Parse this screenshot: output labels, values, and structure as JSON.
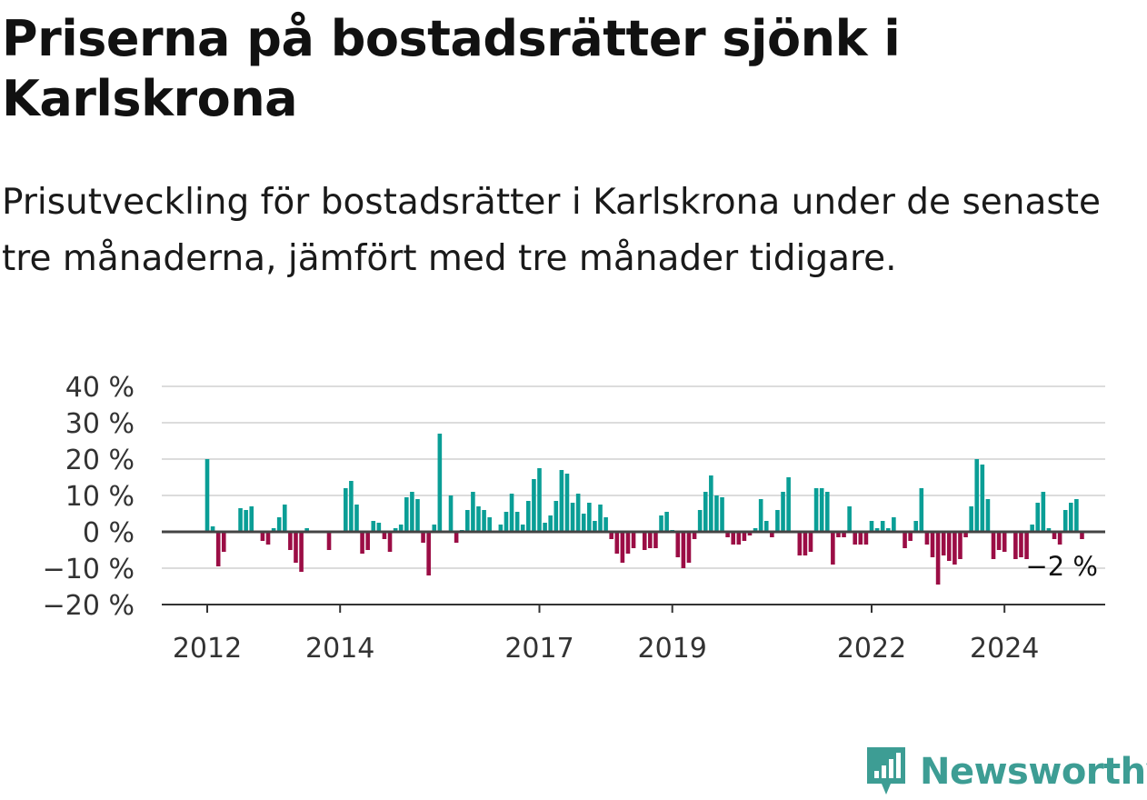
{
  "title": "Priserna på bostadsrätter sjönk i Karlskrona",
  "subtitle": "Prisutveckling för bostadsrätter i Karlskrona under de senaste tre månaderna, jämfört med tre månader tidigare.",
  "brand": {
    "name": "Newsworthy",
    "icon": "bar-chart-speech-bubble-icon",
    "color": "#3d9d94"
  },
  "chart_data": {
    "type": "bar",
    "title": "",
    "xlabel": "",
    "ylabel": "",
    "ylim": [
      -20,
      40
    ],
    "yticks": [
      40,
      30,
      20,
      10,
      0,
      -10,
      -20
    ],
    "ytick_labels": [
      "40 %",
      "30 %",
      "20 %",
      "10 %",
      "0 %",
      "−10 %",
      "−20 %"
    ],
    "grid": true,
    "xticks": [
      2012,
      2014,
      2017,
      2019,
      2022,
      2024
    ],
    "xtick_labels": [
      "2012",
      "2014",
      "2017",
      "2019",
      "2022",
      "2024"
    ],
    "x_start": "2012-01",
    "x_end": "2024-09",
    "positive_color": "#0a9e96",
    "negative_color": "#9b0d45",
    "annotation": "−2 %",
    "values": [
      20,
      1.5,
      -9.5,
      -5.5,
      0,
      0,
      6.5,
      6,
      7,
      0,
      -2.5,
      -3.5,
      1,
      4,
      7.5,
      -5,
      -8.5,
      -11,
      1,
      0,
      0,
      0,
      -5,
      0,
      0,
      12,
      14,
      7.5,
      -6,
      -5,
      3,
      2.5,
      -2,
      -5.5,
      1,
      2,
      9.5,
      11,
      9,
      -3,
      -12,
      2,
      27,
      0,
      10,
      -3,
      0.5,
      6,
      11,
      7,
      6,
      4,
      0,
      2,
      5.5,
      10.5,
      5.5,
      2,
      8.5,
      14.5,
      17.5,
      2.5,
      4.5,
      8.5,
      17,
      16,
      8,
      10.5,
      5,
      8,
      3,
      7.5,
      4,
      -2,
      -6,
      -8.5,
      -6,
      -4.5,
      0,
      -5,
      -4.5,
      -4.5,
      4.5,
      5.5,
      0.5,
      -7,
      -10,
      -8.5,
      -2,
      6,
      11,
      15.5,
      10,
      9.5,
      -1.5,
      -3.5,
      -3.5,
      -2.5,
      -1,
      1,
      9,
      3,
      -1.5,
      6,
      11,
      15,
      0,
      -6.5,
      -6.5,
      -5.5,
      12,
      12,
      11,
      -9,
      -1.5,
      -1.5,
      7,
      -3.5,
      -3.5,
      -3.5,
      3,
      1,
      3,
      1,
      4,
      0,
      -4.5,
      -2.5,
      3,
      12,
      -3.5,
      -7,
      -14.5,
      -6.5,
      -8,
      -9,
      -7.5,
      -1.5,
      7,
      20,
      18.5,
      9,
      -7.5,
      -5,
      -5.5,
      0,
      -7.5,
      -7,
      -7.5,
      2,
      8,
      11,
      1,
      -2,
      -3.5,
      6,
      8,
      9,
      -2
    ]
  }
}
